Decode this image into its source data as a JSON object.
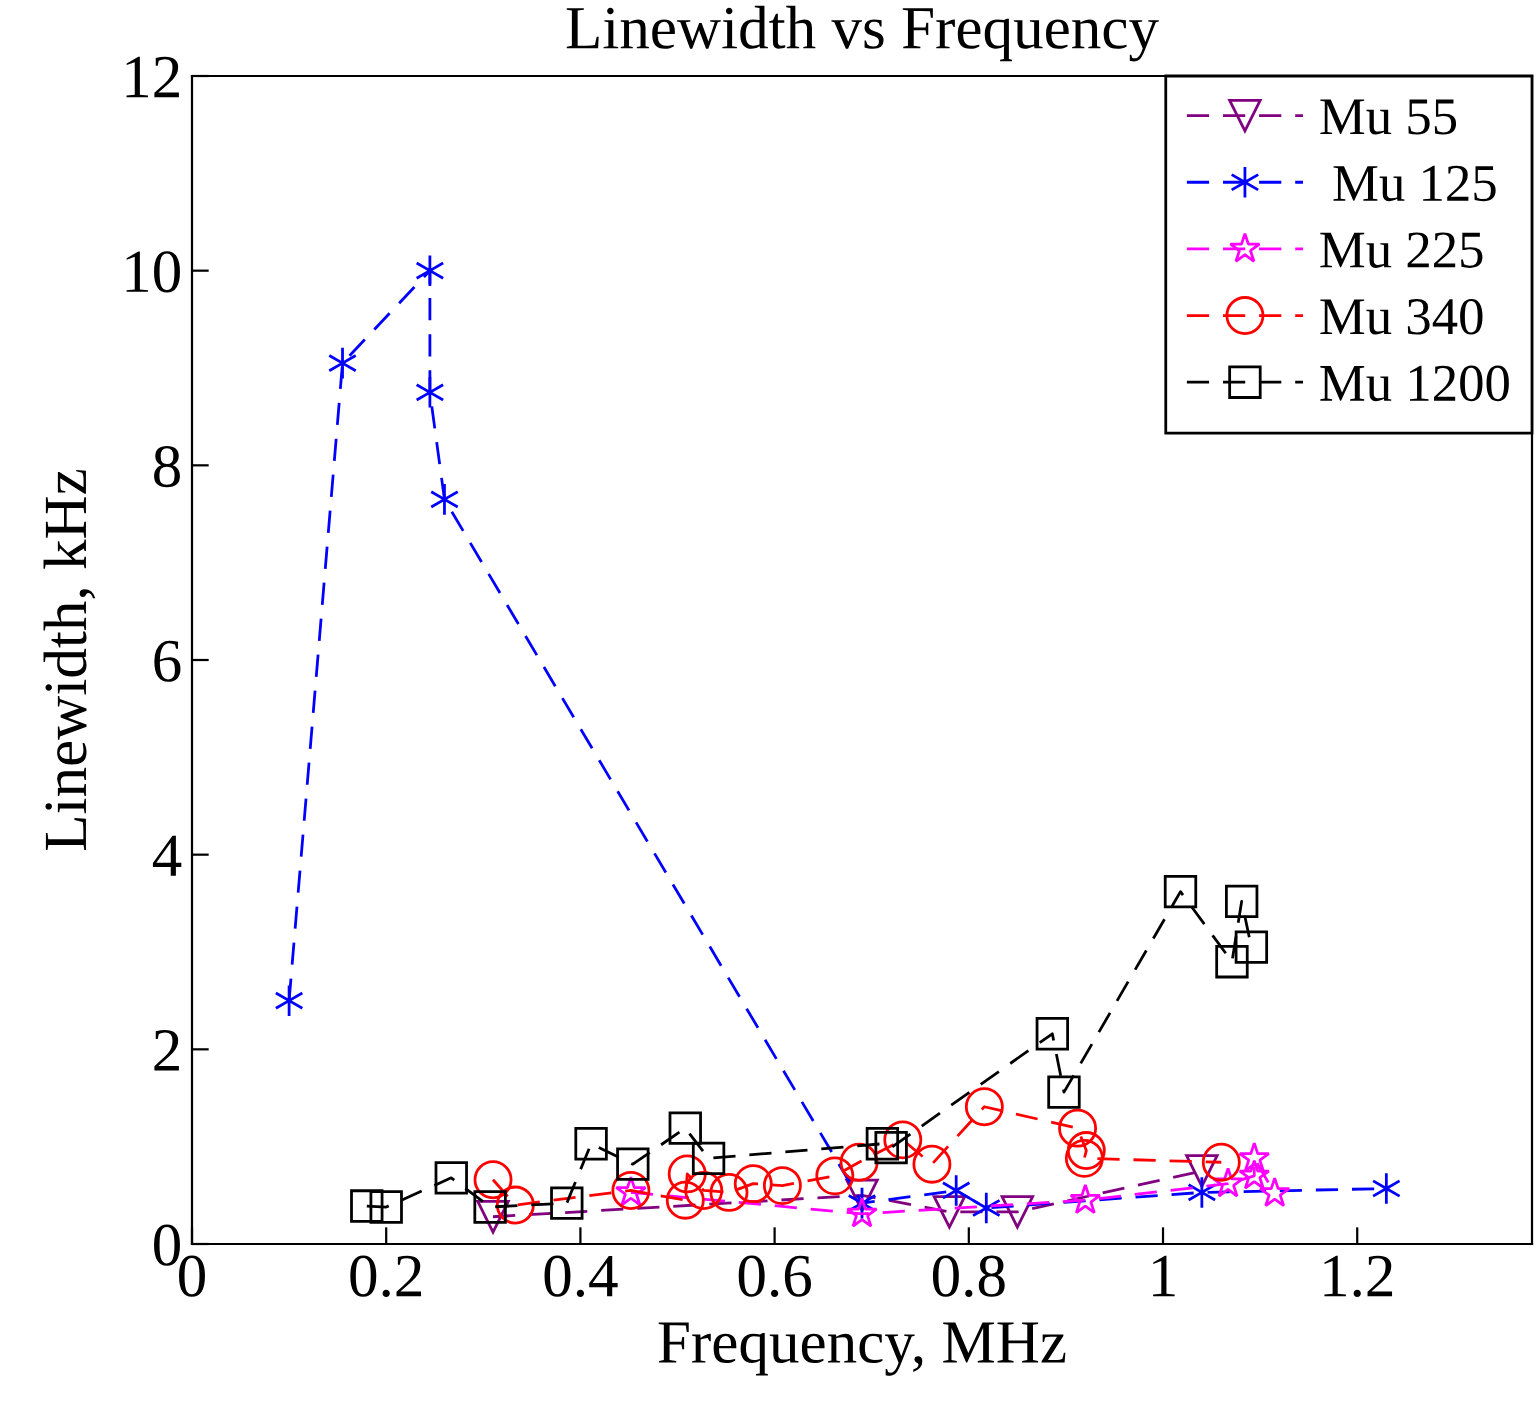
{
  "chart_data": {
    "type": "line",
    "title": "Linewidth vs Frequency",
    "xlabel": "Frequency, MHz",
    "ylabel": "Linewidth, kHz",
    "xlim": [
      0,
      1.38
    ],
    "ylim": [
      0,
      12
    ],
    "xticks": [
      0,
      0.2,
      0.4,
      0.6,
      0.8,
      1,
      1.2
    ],
    "yticks": [
      0,
      2,
      4,
      6,
      8,
      10,
      12
    ],
    "legend": "top right",
    "grid": false,
    "line_style": "dashed",
    "series": [
      {
        "name": "Mu 55",
        "color": "#800080",
        "marker": "triangle",
        "x": [
          0.31,
          0.69,
          0.78,
          0.85,
          1.04
        ],
        "values": [
          0.28,
          0.5,
          0.33,
          0.33,
          0.75
        ]
      },
      {
        "name": " Mu 125",
        "color": "#0000ff",
        "marker": "cross",
        "x": [
          0.1,
          0.155,
          0.245,
          0.245,
          0.26,
          0.69,
          0.787,
          0.818,
          1.04,
          1.23
        ],
        "values": [
          2.5,
          9.05,
          10.0,
          8.75,
          7.65,
          0.42,
          0.55,
          0.37,
          0.53,
          0.57
        ]
      },
      {
        "name": "Mu 225",
        "color": "#ff00ff",
        "marker": "star",
        "x": [
          0.452,
          0.69,
          0.92,
          1.067,
          1.094,
          1.094,
          1.115
        ],
        "values": [
          0.53,
          0.31,
          0.45,
          0.62,
          0.7,
          0.88,
          0.52
        ]
      },
      {
        "name": "Mu 340",
        "color": "#ff0000",
        "marker": "circle",
        "x": [
          0.31,
          0.333,
          0.452,
          0.508,
          0.51,
          0.527,
          0.553,
          0.578,
          0.608,
          0.662,
          0.687,
          0.732,
          0.762,
          0.816,
          0.912,
          0.921,
          0.919,
          1.06
        ],
        "values": [
          0.66,
          0.4,
          0.55,
          0.45,
          0.72,
          0.55,
          0.53,
          0.62,
          0.6,
          0.7,
          0.84,
          1.07,
          0.82,
          1.41,
          1.19,
          0.96,
          0.88,
          0.84
        ]
      },
      {
        "name": "Mu 1200",
        "color": "#000000",
        "marker": "square",
        "x": [
          0.18,
          0.2,
          0.267,
          0.307,
          0.386,
          0.411,
          0.454,
          0.508,
          0.532,
          0.711,
          0.72,
          0.886,
          0.898,
          1.018,
          1.071,
          1.081,
          1.091
        ],
        "values": [
          0.39,
          0.38,
          0.68,
          0.38,
          0.42,
          1.03,
          0.82,
          1.19,
          0.88,
          1.03,
          0.99,
          2.16,
          1.56,
          3.62,
          2.9,
          3.52,
          3.05
        ]
      }
    ]
  }
}
